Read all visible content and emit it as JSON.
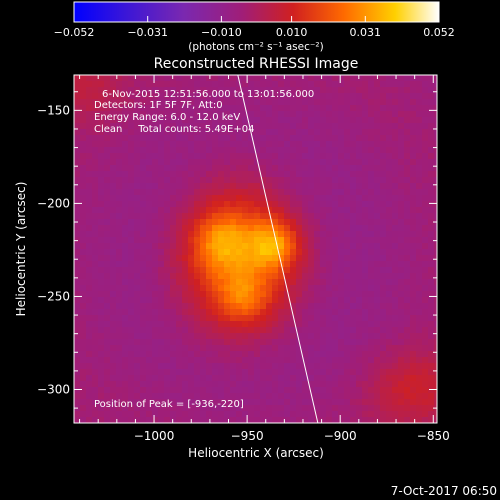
{
  "chart_data": {
    "type": "heatmap",
    "title": "Reconstructed RHESSI Image",
    "xlabel": "Heliocentric X (arcsec)",
    "ylabel": "Heliocentric Y (arcsec)",
    "xlim": [
      -1043,
      -848
    ],
    "ylim": [
      -318,
      -131
    ],
    "x_ticks": [
      -1000,
      -950,
      -900,
      -850
    ],
    "x_tick_labels": [
      "−1000",
      "−950",
      "−900",
      "−850"
    ],
    "y_ticks": [
      -150,
      -200,
      -250,
      -300
    ],
    "y_tick_labels": [
      "−150",
      "−200",
      "−250",
      "−300"
    ],
    "colorbar": {
      "min": -0.052,
      "max": 0.052,
      "ticks": [
        -0.052,
        -0.031,
        -0.01,
        0.01,
        0.031,
        0.052
      ],
      "tick_labels": [
        "−0.052",
        "−0.031",
        "−0.010",
        "0.010",
        "0.031",
        "0.052"
      ],
      "units_label": "(photons cm⁻² s⁻¹ asec⁻²)",
      "colors": [
        "#0000ff",
        "#3a16d8",
        "#7a28b0",
        "#a01e78",
        "#d02020",
        "#ff6a00",
        "#ffd000",
        "#ffffff"
      ]
    },
    "annotations": [
      "6-Nov-2015 12:51:56.000 to 13:01:56.000",
      "Detectors: 1F 5F 7F, Att:0",
      "Energy Range: 6.0 - 12.0 keV",
      "Clean     Total counts: 5.49E+04"
    ],
    "peak_label": "Position of Peak = [-936,-220]",
    "peak": [
      -936,
      -220
    ],
    "limb_line": [
      [
        -955,
        -131
      ],
      [
        -912,
        -318
      ]
    ],
    "sources": [
      {
        "x": -955,
        "y": -230,
        "sx": 22,
        "sy": 28,
        "amp": 0.03
      },
      {
        "x": -935,
        "y": -222,
        "sx": 9,
        "sy": 9,
        "amp": 0.022
      },
      {
        "x": -965,
        "y": -220,
        "sx": 10,
        "sy": 10,
        "amp": 0.014
      },
      {
        "x": -952,
        "y": -252,
        "sx": 9,
        "sy": 9,
        "amp": 0.012
      },
      {
        "x": -860,
        "y": -300,
        "sx": 18,
        "sy": 15,
        "amp": 0.012
      },
      {
        "x": -1040,
        "y": -135,
        "sx": 16,
        "sy": 14,
        "amp": 0.01
      }
    ],
    "background": -0.006
  },
  "footer": {
    "date": "7-Oct-2017 06:50"
  }
}
